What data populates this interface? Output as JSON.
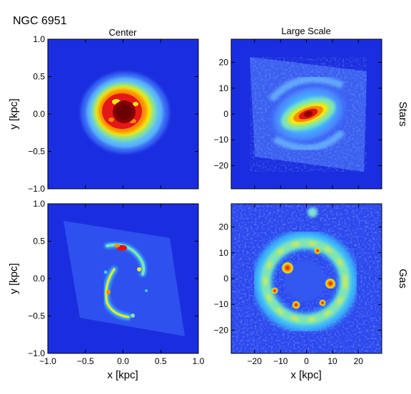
{
  "figure": {
    "title": "NGC 6951",
    "col_titles": [
      "Center",
      "Large Scale"
    ],
    "row_labels": [
      "Stars",
      "Gas"
    ],
    "xlabel": "x [kpc]",
    "ylabel": "y [kpc]",
    "center_ticks": [
      "−1.0",
      "−0.5",
      "0.0",
      "0.5",
      "1.0"
    ],
    "large_ticks": [
      "−20",
      "−10",
      "0",
      "10",
      "20"
    ]
  },
  "colors": {
    "background": "#1a2ee0",
    "dark_core": "#7a0000",
    "red": "#e01010",
    "orange": "#ff8c00",
    "yellow": "#f5e600",
    "green": "#6fe07a",
    "cyan": "#3ed0ff",
    "light_blue": "#6aa6ff",
    "blue": "#3c64f0"
  }
}
